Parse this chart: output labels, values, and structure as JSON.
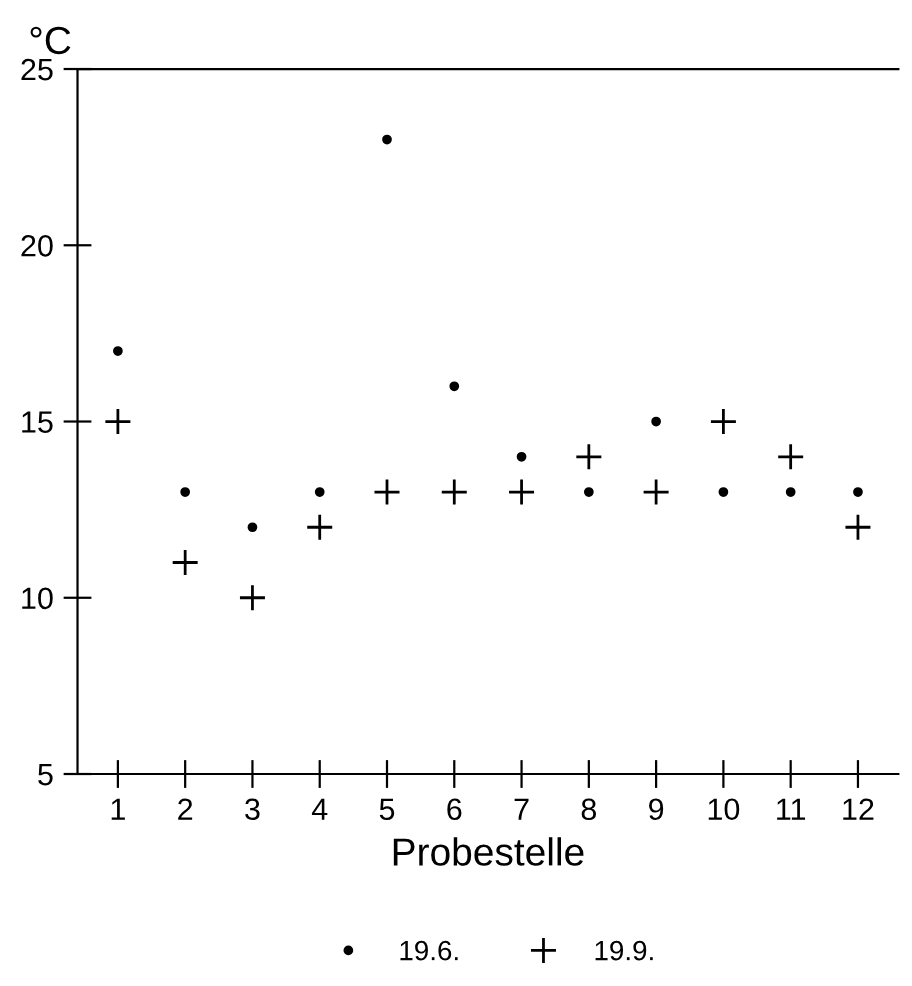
{
  "chart_data": {
    "type": "scatter",
    "ylabel": "°C",
    "xlabel": "Probestelle",
    "categories": [
      "1",
      "2",
      "3",
      "4",
      "5",
      "6",
      "7",
      "8",
      "9",
      "10",
      "11",
      "12"
    ],
    "series": [
      {
        "name": "19.6.",
        "color": "#000000",
        "marker": "circle",
        "values": [
          17,
          13,
          12,
          13,
          23,
          16,
          14,
          13,
          15,
          13,
          13,
          13
        ]
      },
      {
        "name": "19.9.",
        "color": "#000000",
        "marker": "cross",
        "values": [
          15,
          11,
          10,
          12,
          13,
          13,
          13,
          14,
          13,
          15,
          14,
          12
        ]
      }
    ],
    "ylim": [
      5,
      25
    ],
    "yticks": [
      5,
      10,
      15,
      20,
      25
    ],
    "grid": false,
    "legend": "bottom"
  }
}
